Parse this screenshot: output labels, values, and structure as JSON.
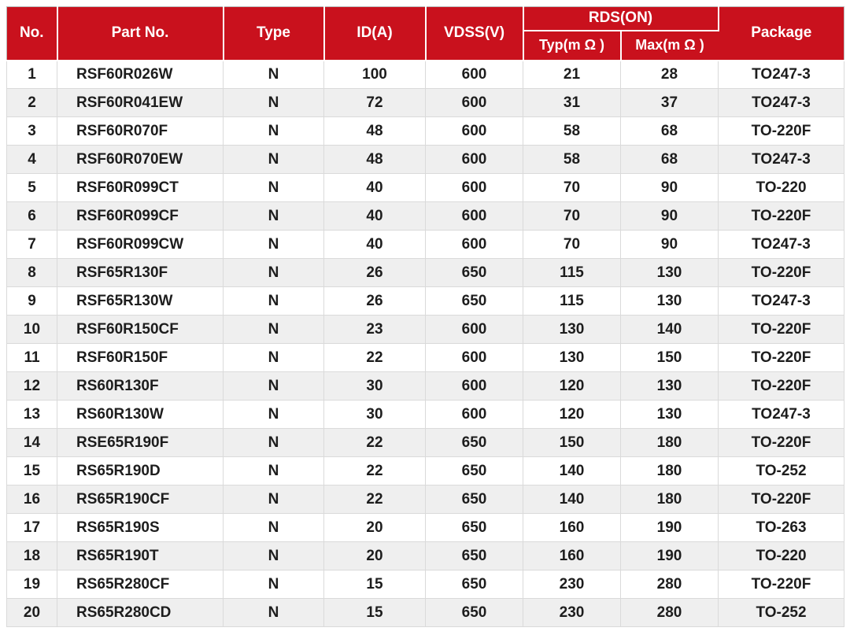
{
  "colors": {
    "header_bg": "#c9111d",
    "header_text": "#ffffff",
    "row_bg": "#ffffff",
    "row_alt_bg": "#efefef",
    "cell_border": "#dadada",
    "outer_border": "#b9b9b9",
    "body_text": "#1d1d1d"
  },
  "chart_data": {
    "type": "table",
    "header": {
      "no": "No.",
      "part_no": "Part No.",
      "type": "Type",
      "id_a": "ID(A)",
      "vdss_v": "VDSS(V)",
      "rds_on_group": "RDS(ON)",
      "rds_typ": "Typ(m Ω )",
      "rds_max": "Max(m Ω )",
      "package": "Package"
    },
    "layout": {
      "striped": true,
      "header_rows": 2,
      "rds_on_spans": [
        "rds_typ",
        "rds_max"
      ]
    },
    "rows": [
      [
        "1",
        "RSF60R026W",
        "N",
        "100",
        "600",
        "21",
        "28",
        "TO247-3"
      ],
      [
        "2",
        "RSF60R041EW",
        "N",
        "72",
        "600",
        "31",
        "37",
        "TO247-3"
      ],
      [
        "3",
        "RSF60R070F",
        "N",
        "48",
        "600",
        "58",
        "68",
        "TO-220F"
      ],
      [
        "4",
        "RSF60R070EW",
        "N",
        "48",
        "600",
        "58",
        "68",
        "TO247-3"
      ],
      [
        "5",
        "RSF60R099CT",
        "N",
        "40",
        "600",
        "70",
        "90",
        "TO-220"
      ],
      [
        "6",
        "RSF60R099CF",
        "N",
        "40",
        "600",
        "70",
        "90",
        "TO-220F"
      ],
      [
        "7",
        "RSF60R099CW",
        "N",
        "40",
        "600",
        "70",
        "90",
        "TO247-3"
      ],
      [
        "8",
        "RSF65R130F",
        "N",
        "26",
        "650",
        "115",
        "130",
        "TO-220F"
      ],
      [
        "9",
        "RSF65R130W",
        "N",
        "26",
        "650",
        "115",
        "130",
        "TO247-3"
      ],
      [
        "10",
        "RSF60R150CF",
        "N",
        "23",
        "600",
        "130",
        "140",
        "TO-220F"
      ],
      [
        "11",
        "RSF60R150F",
        "N",
        "22",
        "600",
        "130",
        "150",
        "TO-220F"
      ],
      [
        "12",
        "RS60R130F",
        "N",
        "30",
        "600",
        "120",
        "130",
        "TO-220F"
      ],
      [
        "13",
        "RS60R130W",
        "N",
        "30",
        "600",
        "120",
        "130",
        "TO247-3"
      ],
      [
        "14",
        "RSE65R190F",
        "N",
        "22",
        "650",
        "150",
        "180",
        "TO-220F"
      ],
      [
        "15",
        "RS65R190D",
        "N",
        "22",
        "650",
        "140",
        "180",
        "TO-252"
      ],
      [
        "16",
        "RS65R190CF",
        "N",
        "22",
        "650",
        "140",
        "180",
        "TO-220F"
      ],
      [
        "17",
        "RS65R190S",
        "N",
        "20",
        "650",
        "160",
        "190",
        "TO-263"
      ],
      [
        "18",
        "RS65R190T",
        "N",
        "20",
        "650",
        "160",
        "190",
        "TO-220"
      ],
      [
        "19",
        "RS65R280CF",
        "N",
        "15",
        "650",
        "230",
        "280",
        "TO-220F"
      ],
      [
        "20",
        "RS65R280CD",
        "N",
        "15",
        "650",
        "230",
        "280",
        "TO-252"
      ]
    ]
  }
}
